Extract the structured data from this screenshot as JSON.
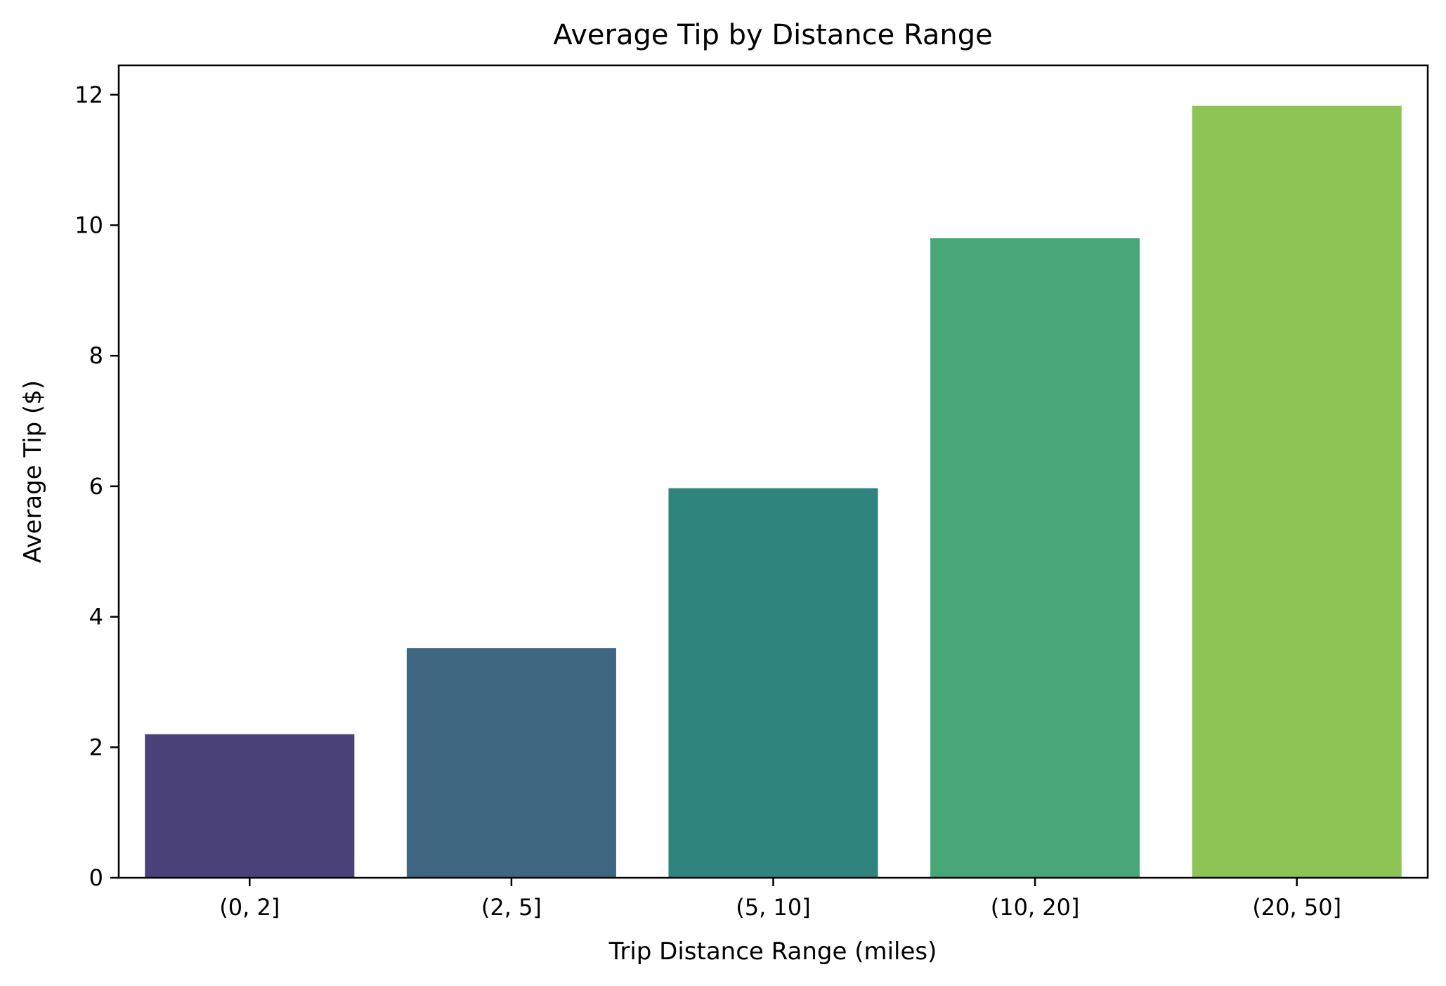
{
  "chart_data": {
    "type": "bar",
    "title": "Average Tip by Distance Range",
    "xlabel": "Trip Distance Range (miles)",
    "ylabel": "Average Tip ($)",
    "categories": [
      "(0, 2]",
      "(2, 5]",
      "(5, 10]",
      "(10, 20]",
      "(20, 50]"
    ],
    "values": [
      2.2,
      3.52,
      5.97,
      9.8,
      11.83
    ],
    "colors": [
      "#4b4279",
      "#3e6680",
      "#30847e",
      "#47a777",
      "#8ec456"
    ],
    "ylim": [
      0,
      12.45
    ],
    "yticks": [
      0,
      2,
      4,
      6,
      8,
      10,
      12
    ],
    "grid": false,
    "legend": "none"
  }
}
